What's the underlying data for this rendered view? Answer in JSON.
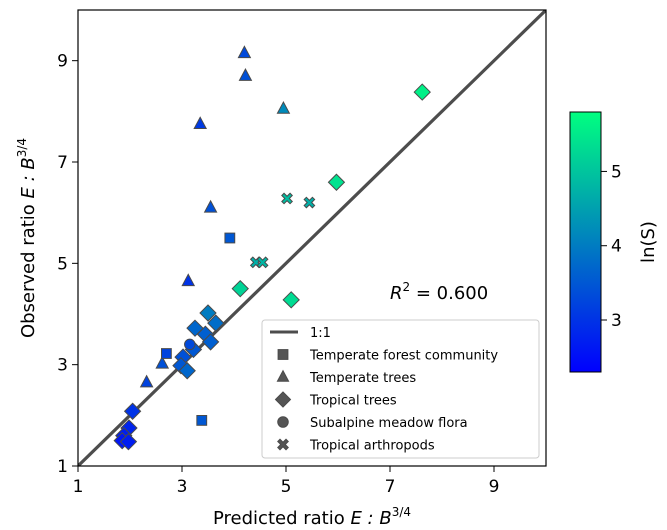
{
  "chart_data": {
    "type": "scatter",
    "xlabel_main": "Predicted ratio ",
    "xlabel_math": "E : B",
    "xlabel_sup": "3/4",
    "ylabel_main": "Observed ratio ",
    "ylabel_math": "E : B",
    "ylabel_sup": "3/4",
    "xlim": [
      1,
      10
    ],
    "ylim": [
      1,
      10
    ],
    "xticks": [
      "1",
      "3",
      "5",
      "7",
      "9"
    ],
    "yticks": [
      "1",
      "3",
      "5",
      "7",
      "9"
    ],
    "annotation": {
      "math": "R",
      "sup": "2",
      "text": " = 0.600"
    },
    "identity_line": {
      "label": "1:1",
      "color": "#4d4d4d"
    },
    "colorbar": {
      "label": "ln(S)",
      "min": 2.3,
      "max": 5.8,
      "ticks": [
        "3",
        "4",
        "5"
      ],
      "colors": [
        "#0000ff",
        "#00ff80"
      ]
    },
    "legend": {
      "position": "lower-right",
      "entries": [
        {
          "label": "1:1",
          "marker": "line"
        },
        {
          "label": "Temperate forest community",
          "marker": "square"
        },
        {
          "label": "Temperate trees",
          "marker": "triangle"
        },
        {
          "label": "Tropical trees",
          "marker": "diamond"
        },
        {
          "label": "Subalpine meadow flora",
          "marker": "circle"
        },
        {
          "label": "Tropical arthropods",
          "marker": "x"
        }
      ]
    },
    "grid": false,
    "series": [
      {
        "marker": "triangle",
        "points": [
          {
            "x": 4.2,
            "y": 9.15,
            "c": 3.3
          },
          {
            "x": 4.22,
            "y": 8.7,
            "c": 3.4
          },
          {
            "x": 3.35,
            "y": 7.75,
            "c": 3.1
          },
          {
            "x": 4.95,
            "y": 8.05,
            "c": 4.2
          },
          {
            "x": 3.55,
            "y": 6.1,
            "c": 3.4
          },
          {
            "x": 3.12,
            "y": 4.65,
            "c": 3.0
          },
          {
            "x": 2.62,
            "y": 3.02,
            "c": 3.4
          },
          {
            "x": 2.32,
            "y": 2.65,
            "c": 3.2
          }
        ]
      },
      {
        "marker": "square",
        "points": [
          {
            "x": 3.92,
            "y": 5.5,
            "c": 3.5
          },
          {
            "x": 2.7,
            "y": 3.22,
            "c": 3.2
          },
          {
            "x": 3.38,
            "y": 1.9,
            "c": 3.5
          }
        ]
      },
      {
        "marker": "diamond",
        "points": [
          {
            "x": 7.62,
            "y": 8.38,
            "c": 5.6
          },
          {
            "x": 5.97,
            "y": 6.6,
            "c": 5.4
          },
          {
            "x": 4.12,
            "y": 4.5,
            "c": 5.2
          },
          {
            "x": 5.1,
            "y": 4.28,
            "c": 5.3
          },
          {
            "x": 3.5,
            "y": 4.02,
            "c": 4.0
          },
          {
            "x": 3.25,
            "y": 3.72,
            "c": 3.7
          },
          {
            "x": 3.65,
            "y": 3.82,
            "c": 3.8
          },
          {
            "x": 3.45,
            "y": 3.6,
            "c": 3.6
          },
          {
            "x": 3.22,
            "y": 3.3,
            "c": 3.5
          },
          {
            "x": 3.02,
            "y": 3.15,
            "c": 3.4
          },
          {
            "x": 3.55,
            "y": 3.45,
            "c": 3.6
          },
          {
            "x": 2.98,
            "y": 2.98,
            "c": 3.5
          },
          {
            "x": 3.1,
            "y": 2.88,
            "c": 3.7
          },
          {
            "x": 2.05,
            "y": 2.08,
            "c": 3.0
          },
          {
            "x": 1.98,
            "y": 1.75,
            "c": 2.8
          },
          {
            "x": 1.88,
            "y": 1.6,
            "c": 2.7
          },
          {
            "x": 1.85,
            "y": 1.5,
            "c": 2.6
          },
          {
            "x": 1.97,
            "y": 1.48,
            "c": 2.7
          }
        ]
      },
      {
        "marker": "circle",
        "points": [
          {
            "x": 3.15,
            "y": 3.4,
            "c": 3.3
          }
        ]
      },
      {
        "marker": "x",
        "points": [
          {
            "x": 5.02,
            "y": 6.28,
            "c": 4.9
          },
          {
            "x": 5.45,
            "y": 6.2,
            "c": 4.7
          },
          {
            "x": 4.42,
            "y": 5.02,
            "c": 4.7
          },
          {
            "x": 4.55,
            "y": 5.02,
            "c": 4.8
          }
        ]
      }
    ]
  }
}
